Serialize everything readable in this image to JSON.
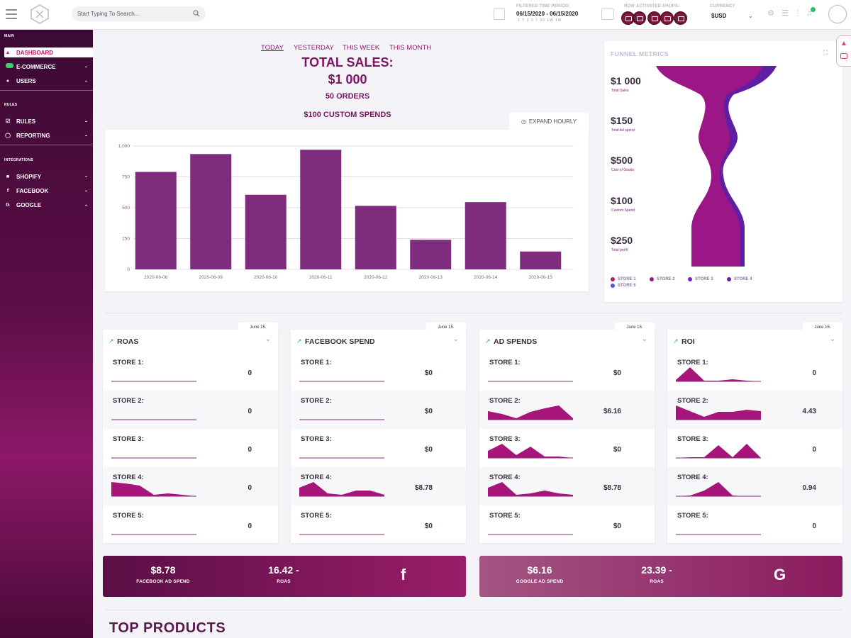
{
  "topbar": {
    "search_placeholder": "Start Typing To Search...",
    "filtered_label": "FILTERED TIME PERIOD:",
    "filtered_value": "06/15/2020 - 06/15/2020",
    "filtered_presets": "1 Y 2 3 7 30 1W 1M",
    "shops_label": "NOW ACTIVATED SHOPS:",
    "currency_label": "CURRENCY",
    "currency_value": "$USD",
    "colors": {
      "shop_circle": "#7b1a3e",
      "notif": "#2bc06e"
    }
  },
  "sidebar": {
    "sections": {
      "main": "MAIN",
      "rules": "RULES",
      "integrations": "INTEGRATIONS"
    },
    "items": [
      {
        "label": "DASHBOARD",
        "icon": "chart-icon",
        "active": true
      },
      {
        "label": "E-COMMERCE",
        "icon": "cart-icon",
        "expand": "-"
      },
      {
        "label": "USERS",
        "icon": "users-icon",
        "expand": "-"
      },
      {
        "label": "RULES",
        "icon": "check-icon",
        "expand": "-"
      },
      {
        "label": "REPORTING",
        "icon": "report-icon",
        "expand": "-"
      },
      {
        "label": "SHOPIFY",
        "icon": "shopify-icon",
        "expand": "-"
      },
      {
        "label": "FACEBOOK",
        "icon": "facebook-icon",
        "expand": "-"
      },
      {
        "label": "GOOGLE",
        "icon": "google-icon",
        "expand": "-"
      }
    ]
  },
  "summary": {
    "tabs": [
      "TODAY",
      "YESTERDAY",
      "THIS WEEK",
      "THIS MONTH"
    ],
    "total_label": "TOTAL SALES:",
    "total_value": "$1 000",
    "orders": "50 ORDERS",
    "custom_spends": "$100 CUSTOM SPENDS",
    "expand_label": "EXPAND HOURLY"
  },
  "chart_data": {
    "type": "bar",
    "categories": [
      "2020-06-08",
      "2020-06-09",
      "2020-06-10",
      "2020-06-11",
      "2020-06-12",
      "2020-06-13",
      "2020-06-14",
      "2020-06-15"
    ],
    "values": [
      790,
      935,
      605,
      970,
      515,
      240,
      545,
      145
    ],
    "ylim": [
      0,
      1000
    ],
    "yticks": [
      "0",
      "250",
      "500",
      "750",
      "1,000"
    ],
    "grid": true,
    "bar_color": "#7f2b7e"
  },
  "funnel": {
    "title": "FUNNEL METRICS",
    "rows": [
      {
        "value": "$1 000",
        "label": "Total Sales"
      },
      {
        "value": "$150",
        "label": "Total Ad spend"
      },
      {
        "value": "$500",
        "label": "Cost of Goods"
      },
      {
        "value": "$100",
        "label": "Custom Spend"
      },
      {
        "value": "$250",
        "label": "Total profit"
      }
    ],
    "legend": [
      {
        "name": "STORE 1",
        "color": "#b5196f"
      },
      {
        "name": "STORE 2",
        "color": "#9b1686"
      },
      {
        "name": "STORE 3",
        "color": "#7a22b8"
      },
      {
        "name": "STORE 4",
        "color": "#5e1fa3"
      },
      {
        "name": "STORE 5",
        "color": "#4a5bd0"
      }
    ]
  },
  "metrics": [
    {
      "title": "ROAS",
      "date": "June 15.",
      "stores": [
        {
          "label": "STORE 1:",
          "value": "0"
        },
        {
          "label": "STORE 2:",
          "value": "0"
        },
        {
          "label": "STORE 3:",
          "value": "0"
        },
        {
          "label": "STORE 4:",
          "value": "0"
        },
        {
          "label": "STORE 5:",
          "value": "0"
        }
      ]
    },
    {
      "title": "FACEBOOK SPEND",
      "date": "June 15.",
      "stores": [
        {
          "label": "STORE 1:",
          "value": "$0"
        },
        {
          "label": "STORE 2:",
          "value": "$0"
        },
        {
          "label": "STORE 3:",
          "value": "$0"
        },
        {
          "label": "STORE 4:",
          "value": "$8.78"
        },
        {
          "label": "STORE 5:",
          "value": "$0"
        }
      ]
    },
    {
      "title": "AD SPENDS",
      "date": "June 15.",
      "stores": [
        {
          "label": "STORE 1:",
          "value": "$0"
        },
        {
          "label": "STORE 2:",
          "value": "$6.16"
        },
        {
          "label": "STORE 3:",
          "value": "$0"
        },
        {
          "label": "STORE 4:",
          "value": "$8.78"
        },
        {
          "label": "STORE 5:",
          "value": "$0"
        }
      ]
    },
    {
      "title": "ROI",
      "date": "June 15.",
      "stores": [
        {
          "label": "STORE 1:",
          "value": "0"
        },
        {
          "label": "STORE 2:",
          "value": "4.43"
        },
        {
          "label": "STORE 3:",
          "value": "0"
        },
        {
          "label": "STORE 4:",
          "value": "0.94"
        },
        {
          "label": "STORE 5:",
          "value": "0"
        }
      ]
    }
  ],
  "banners": {
    "facebook": {
      "spend_value": "$8.78",
      "spend_label": "FACEBOOK AD SPEND",
      "roas_value": "16.42 -",
      "roas_label": "ROAS",
      "icon": "f"
    },
    "google": {
      "spend_value": "$6.16",
      "spend_label": "GOOGLE AD SPEND",
      "roas_value": "23.39 -",
      "roas_label": "ROAS",
      "icon": "G"
    }
  },
  "top_products": "TOP PRODUCTS"
}
